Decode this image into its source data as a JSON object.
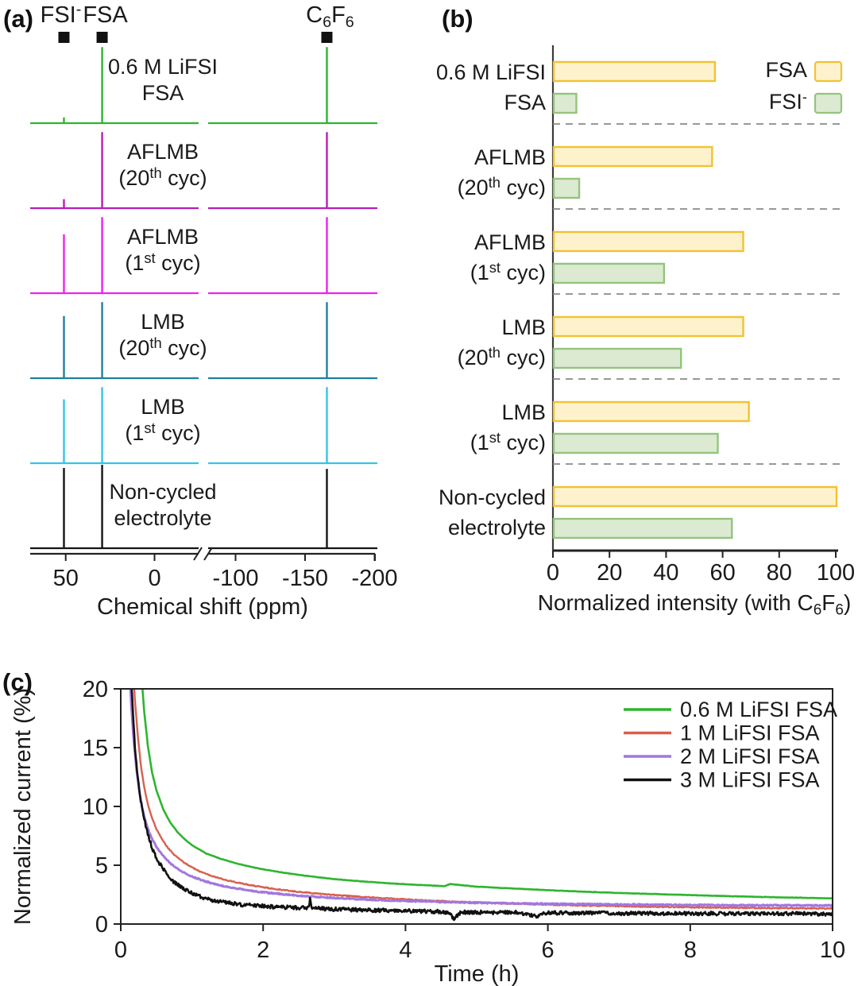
{
  "figure": {
    "panel_tags": {
      "a": "(a)",
      "b": "(b)",
      "c": "(c)"
    },
    "background": "#ffffff"
  },
  "chart_data": [
    {
      "panel": "a",
      "type": "line",
      "subtype": "nmr-stack",
      "xlabel": "Chemical shift (ppm)",
      "x_ticks_left": [
        {
          "ppm": 50,
          "label": "50"
        },
        {
          "ppm": 0,
          "label": "0"
        }
      ],
      "x_ticks_right": [
        {
          "ppm": -100,
          "label": "-100"
        },
        {
          "ppm": -150,
          "label": "-150"
        },
        {
          "ppm": -200,
          "label": "-200"
        }
      ],
      "x_axis_break_between": [
        -24,
        -80
      ],
      "peaks_ppm": {
        "fsi": 51,
        "fsa": 29.5,
        "c6f6": -165.7
      },
      "peak_markers": [
        {
          "key": "fsi",
          "parts": [
            [
              "FSI"
            ],
            [
              "-",
              "sup"
            ]
          ]
        },
        {
          "key": "fsa",
          "parts": [
            [
              "FSA"
            ]
          ]
        },
        {
          "key": "c6f6",
          "parts": [
            [
              "C"
            ],
            [
              "6",
              "sub"
            ],
            [
              "F"
            ],
            [
              "6",
              "sub"
            ]
          ]
        }
      ],
      "traces": [
        {
          "name": "0.6 M LiFSI FSA",
          "color": "#2eb52e",
          "lines": [
            [
              [
                "0.6 M LiFSI"
              ]
            ],
            [
              [
                "FSA"
              ]
            ]
          ],
          "peak_heights": {
            "fsi": 0.07,
            "fsa": 0.93,
            "c6f6": 0.93
          }
        },
        {
          "name": "AFLMB (20th cyc)",
          "color": "#b81eb8",
          "lines": [
            [
              [
                "AFLMB"
              ]
            ],
            [
              [
                "(20"
              ],
              [
                "th",
                "sup"
              ],
              [
                " cyc)"
              ]
            ]
          ],
          "peak_heights": {
            "fsi": 0.11,
            "fsa": 0.93,
            "c6f6": 0.93
          }
        },
        {
          "name": "AFLMB (1st cyc)",
          "color": "#ee22ee",
          "lines": [
            [
              [
                "AFLMB"
              ]
            ],
            [
              [
                "(1"
              ],
              [
                "st",
                "sup"
              ],
              [
                " cyc)"
              ]
            ]
          ],
          "peak_heights": {
            "fsi": 0.72,
            "fsa": 0.93,
            "c6f6": 0.93
          }
        },
        {
          "name": "LMB (20th cyc)",
          "color": "#2080a0",
          "lines": [
            [
              [
                "LMB"
              ]
            ],
            [
              [
                "(20"
              ],
              [
                "th",
                "sup"
              ],
              [
                " cyc)"
              ]
            ]
          ],
          "peak_heights": {
            "fsi": 0.76,
            "fsa": 0.93,
            "c6f6": 0.93
          }
        },
        {
          "name": "LMB (1st cyc)",
          "color": "#35c4e5",
          "lines": [
            [
              [
                "LMB"
              ]
            ],
            [
              [
                "(1"
              ],
              [
                "st",
                "sup"
              ],
              [
                " cyc)"
              ]
            ]
          ],
          "peak_heights": {
            "fsi": 0.78,
            "fsa": 0.93,
            "c6f6": 0.93
          }
        },
        {
          "name": "Non-cycled electrolyte",
          "color": "#151515",
          "lines": [
            [
              [
                "Non-cycled"
              ]
            ],
            [
              [
                "electrolyte"
              ]
            ]
          ],
          "peak_heights": {
            "fsi": 0.98,
            "fsa": 1.02,
            "c6f6": 0.97
          }
        }
      ]
    },
    {
      "panel": "b",
      "type": "bar",
      "orientation": "horizontal",
      "xlabel_parts": [
        [
          "Normalized intensity (with C"
        ],
        [
          "6",
          "sub"
        ],
        [
          "F"
        ],
        [
          "6",
          "sub"
        ],
        [
          ")"
        ]
      ],
      "x_ticks": [
        0,
        20,
        40,
        60,
        80,
        100
      ],
      "xlim": [
        0,
        100
      ],
      "categories": [
        {
          "lines": [
            [
              [
                "0.6 M LiFSI"
              ]
            ],
            [
              [
                "FSA"
              ]
            ]
          ]
        },
        {
          "lines": [
            [
              [
                "AFLMB"
              ]
            ],
            [
              [
                "(20"
              ],
              [
                "th",
                "sup"
              ],
              [
                " cyc)"
              ]
            ]
          ]
        },
        {
          "lines": [
            [
              [
                "AFLMB"
              ]
            ],
            [
              [
                "(1"
              ],
              [
                "st",
                "sup"
              ],
              [
                " cyc)"
              ]
            ]
          ]
        },
        {
          "lines": [
            [
              [
                "LMB"
              ]
            ],
            [
              [
                "(20"
              ],
              [
                "th",
                "sup"
              ],
              [
                " cyc)"
              ]
            ]
          ]
        },
        {
          "lines": [
            [
              [
                "LMB"
              ]
            ],
            [
              [
                "(1"
              ],
              [
                "st",
                "sup"
              ],
              [
                " cyc)"
              ]
            ]
          ]
        },
        {
          "lines": [
            [
              [
                "Non-cycled"
              ]
            ],
            [
              [
                "electrolyte"
              ]
            ]
          ]
        }
      ],
      "series": [
        {
          "name": "FSA",
          "legend_parts": [
            [
              "FSA"
            ]
          ],
          "fill": "#fdf2cc",
          "stroke": "#f1c232",
          "values": [
            57,
            56,
            67,
            67,
            69,
            100
          ]
        },
        {
          "name": "FSI-",
          "legend_parts": [
            [
              "FSI"
            ],
            [
              "-",
              "sup"
            ]
          ],
          "fill": "#dcead2",
          "stroke": "#93c47d",
          "values": [
            8,
            9,
            39,
            45,
            58,
            63
          ]
        }
      ],
      "separator_color": "#8a8a8a",
      "legend_position": "top-right"
    },
    {
      "panel": "c",
      "type": "line",
      "xlabel": "Time (h)",
      "ylabel": "Normalized current (%)",
      "xlim": [
        0,
        10
      ],
      "ylim": [
        0,
        20
      ],
      "x_ticks": [
        0,
        2,
        4,
        6,
        8,
        10
      ],
      "y_ticks": [
        0,
        5,
        10,
        15,
        20
      ],
      "legend_position": "top-right",
      "series": [
        {
          "name": "0.6 M LiFSI FSA",
          "color": "#2eb52e",
          "width": 2.6,
          "noise": 0.015,
          "points": [
            [
              0.28,
              22
            ],
            [
              0.33,
              18
            ],
            [
              0.38,
              15.2
            ],
            [
              0.44,
              12.9
            ],
            [
              0.5,
              11.4
            ],
            [
              0.6,
              9.7
            ],
            [
              0.7,
              8.6
            ],
            [
              0.8,
              7.8
            ],
            [
              0.9,
              7.2
            ],
            [
              1.0,
              6.7
            ],
            [
              1.2,
              6.0
            ],
            [
              1.4,
              5.55
            ],
            [
              1.6,
              5.2
            ],
            [
              1.8,
              4.9
            ],
            [
              2.0,
              4.65
            ],
            [
              2.3,
              4.35
            ],
            [
              2.6,
              4.1
            ],
            [
              3.0,
              3.82
            ],
            [
              3.4,
              3.62
            ],
            [
              3.8,
              3.45
            ],
            [
              4.2,
              3.32
            ],
            [
              4.55,
              3.22
            ],
            [
              4.62,
              3.4
            ],
            [
              4.8,
              3.3
            ],
            [
              5.0,
              3.18
            ],
            [
              5.5,
              3.02
            ],
            [
              6.0,
              2.88
            ],
            [
              6.5,
              2.75
            ],
            [
              7.0,
              2.64
            ],
            [
              7.5,
              2.55
            ],
            [
              8.0,
              2.46
            ],
            [
              8.5,
              2.38
            ],
            [
              9.0,
              2.3
            ],
            [
              9.5,
              2.24
            ],
            [
              10,
              2.18
            ]
          ]
        },
        {
          "name": "1 M LiFSI FSA",
          "color": "#d8604e",
          "width": 2.4,
          "noise": 0.04,
          "points": [
            [
              0.17,
              22
            ],
            [
              0.2,
              19
            ],
            [
              0.24,
              16
            ],
            [
              0.28,
              13.6
            ],
            [
              0.33,
              11.6
            ],
            [
              0.38,
              10.2
            ],
            [
              0.44,
              9.0
            ],
            [
              0.5,
              8.1
            ],
            [
              0.58,
              7.2
            ],
            [
              0.66,
              6.5
            ],
            [
              0.75,
              5.9
            ],
            [
              0.85,
              5.4
            ],
            [
              0.95,
              5.0
            ],
            [
              1.1,
              4.5
            ],
            [
              1.3,
              4.05
            ],
            [
              1.5,
              3.7
            ],
            [
              1.7,
              3.45
            ],
            [
              1.9,
              3.22
            ],
            [
              2.2,
              2.95
            ],
            [
              2.5,
              2.73
            ],
            [
              2.9,
              2.52
            ],
            [
              3.3,
              2.34
            ],
            [
              3.8,
              2.16
            ],
            [
              4.3,
              2.0
            ],
            [
              4.8,
              1.88
            ],
            [
              5.3,
              1.77
            ],
            [
              5.8,
              1.68
            ],
            [
              6.3,
              1.6
            ],
            [
              6.8,
              1.54
            ],
            [
              7.3,
              1.48
            ],
            [
              7.8,
              1.44
            ],
            [
              8.3,
              1.4
            ],
            [
              8.8,
              1.37
            ],
            [
              9.4,
              1.34
            ],
            [
              10,
              1.32
            ]
          ]
        },
        {
          "name": "2 M LiFSI FSA",
          "color": "#a177e0",
          "width": 3.0,
          "noise": 0.05,
          "points": [
            [
              0.12,
              22
            ],
            [
              0.15,
              18.5
            ],
            [
              0.18,
              15.8
            ],
            [
              0.22,
              13.2
            ],
            [
              0.26,
              11.3
            ],
            [
              0.3,
              9.9
            ],
            [
              0.35,
              8.7
            ],
            [
              0.4,
              7.8
            ],
            [
              0.46,
              7.0
            ],
            [
              0.52,
              6.4
            ],
            [
              0.6,
              5.75
            ],
            [
              0.7,
              5.15
            ],
            [
              0.8,
              4.7
            ],
            [
              0.9,
              4.35
            ],
            [
              1.0,
              4.05
            ],
            [
              1.2,
              3.6
            ],
            [
              1.4,
              3.28
            ],
            [
              1.6,
              3.05
            ],
            [
              1.8,
              2.86
            ],
            [
              2.0,
              2.7
            ],
            [
              2.3,
              2.52
            ],
            [
              2.6,
              2.37
            ],
            [
              3.0,
              2.22
            ],
            [
              3.5,
              2.07
            ],
            [
              4.0,
              1.96
            ],
            [
              4.5,
              1.88
            ],
            [
              5.0,
              1.81
            ],
            [
              5.5,
              1.76
            ],
            [
              6.0,
              1.72
            ],
            [
              6.5,
              1.69
            ],
            [
              7.0,
              1.66
            ],
            [
              7.5,
              1.64
            ],
            [
              8.0,
              1.62
            ],
            [
              8.5,
              1.6
            ],
            [
              9.0,
              1.59
            ],
            [
              9.5,
              1.58
            ],
            [
              10,
              1.57
            ]
          ]
        },
        {
          "name": "3 M LiFSI FSA",
          "color": "#111111",
          "width": 2.6,
          "noise": 0.16,
          "points": [
            [
              0.14,
              22
            ],
            [
              0.17,
              18
            ],
            [
              0.2,
              15
            ],
            [
              0.24,
              12.4
            ],
            [
              0.28,
              10.5
            ],
            [
              0.33,
              8.9
            ],
            [
              0.38,
              7.6
            ],
            [
              0.44,
              6.5
            ],
            [
              0.5,
              5.6
            ],
            [
              0.57,
              4.9
            ],
            [
              0.65,
              4.2
            ],
            [
              0.75,
              3.55
            ],
            [
              0.85,
              3.1
            ],
            [
              0.95,
              2.75
            ],
            [
              1.1,
              2.35
            ],
            [
              1.3,
              2.0
            ],
            [
              1.5,
              1.8
            ],
            [
              1.7,
              1.65
            ],
            [
              1.9,
              1.55
            ],
            [
              2.2,
              1.45
            ],
            [
              2.5,
              1.38
            ],
            [
              2.64,
              1.4
            ],
            [
              2.66,
              2.15
            ],
            [
              2.68,
              1.35
            ],
            [
              3.0,
              1.26
            ],
            [
              3.5,
              1.18
            ],
            [
              4.0,
              1.12
            ],
            [
              4.5,
              1.06
            ],
            [
              4.6,
              0.95
            ],
            [
              4.68,
              0.5
            ],
            [
              4.78,
              1.0
            ],
            [
              5.2,
              1.0
            ],
            [
              5.6,
              0.97
            ],
            [
              5.85,
              0.65
            ],
            [
              5.95,
              0.95
            ],
            [
              6.5,
              0.93
            ],
            [
              7.0,
              0.92
            ],
            [
              7.5,
              0.91
            ],
            [
              8.0,
              0.9
            ],
            [
              8.5,
              0.89
            ],
            [
              9.0,
              0.88
            ],
            [
              9.5,
              0.87
            ],
            [
              10,
              0.86
            ]
          ]
        }
      ]
    }
  ]
}
